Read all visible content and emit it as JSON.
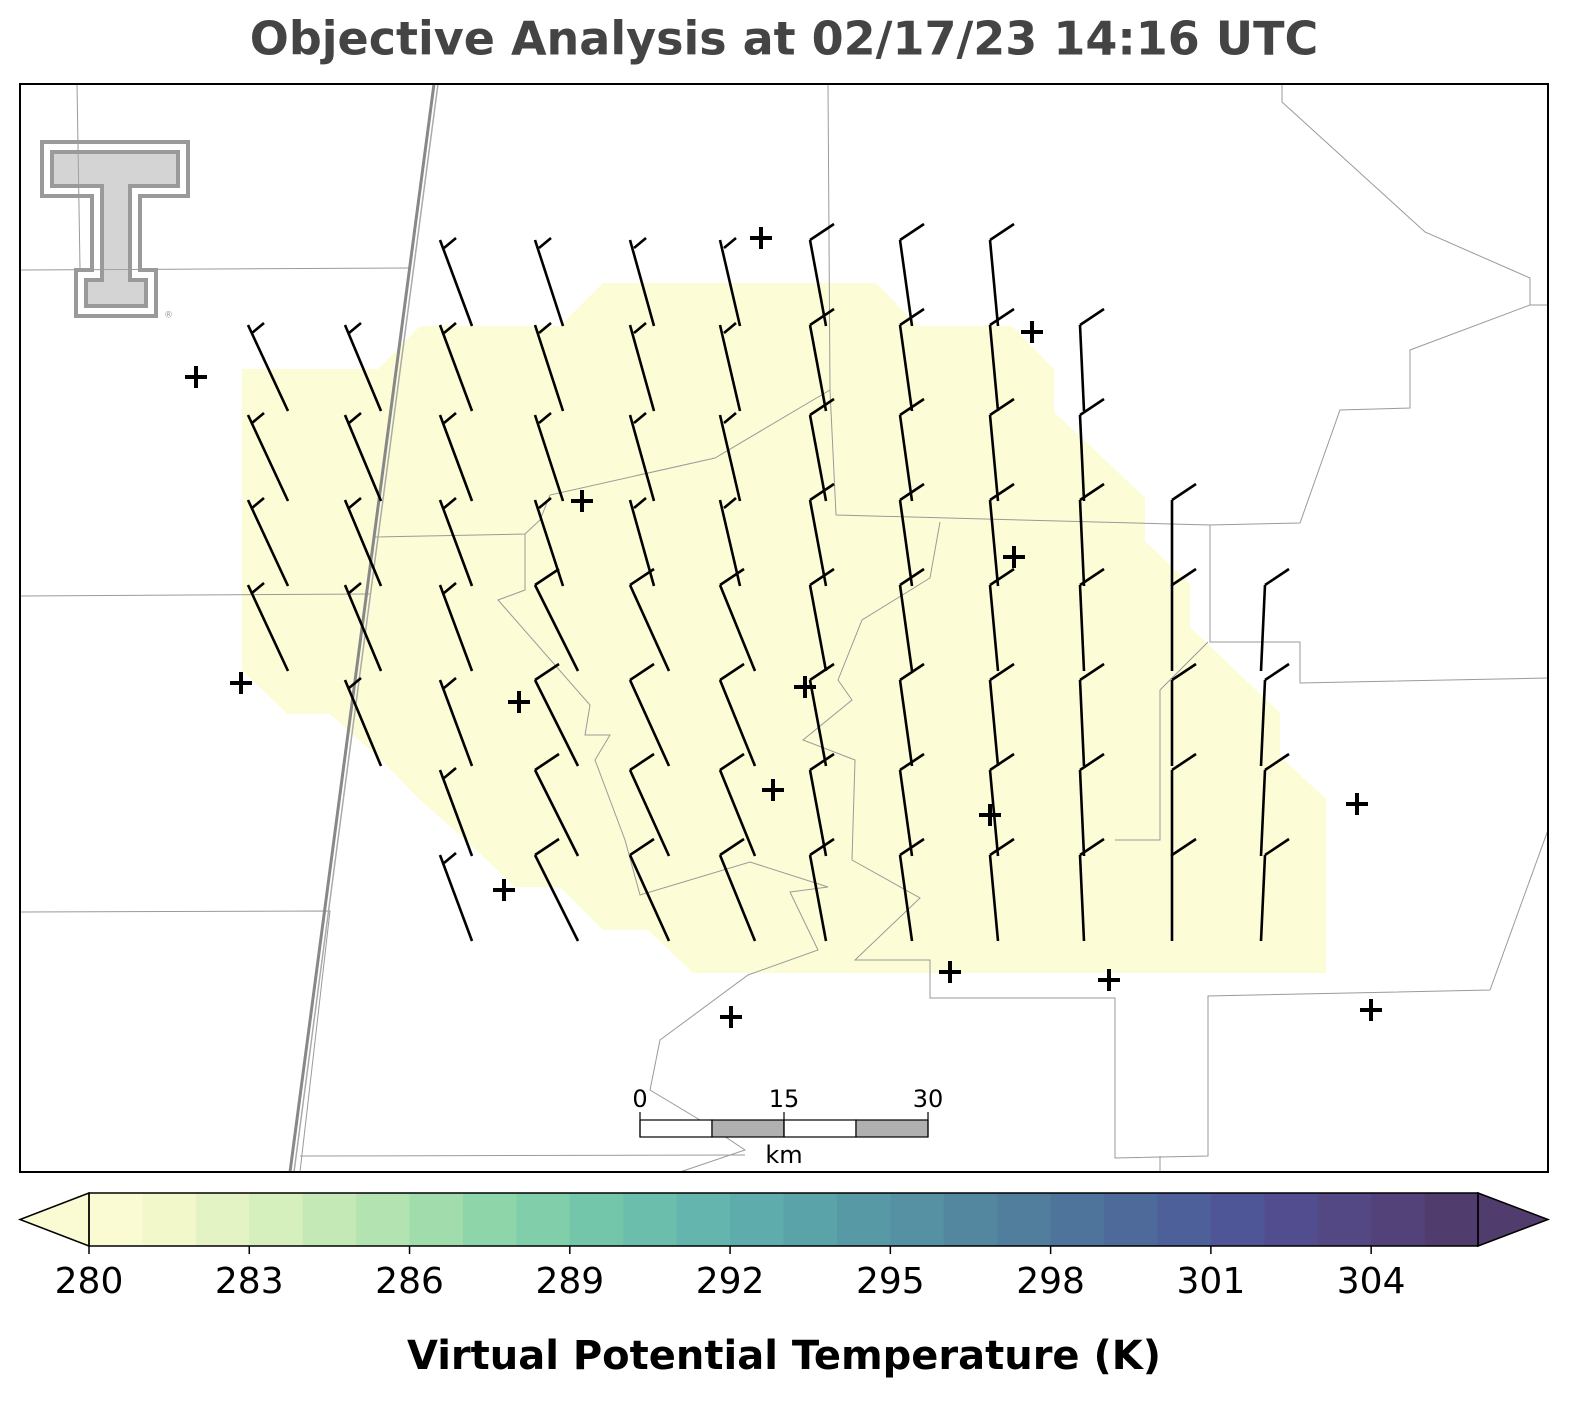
{
  "header": {
    "title": "Objective Analysis at 02/17/23 14:16 UTC"
  },
  "colorbar": {
    "label": "Virtual Potential Temperature (K)",
    "lim": [
      280,
      306
    ],
    "ticks": [
      280,
      283,
      286,
      289,
      292,
      295,
      298,
      301,
      304
    ],
    "extend": "both",
    "colors": [
      "#fbfbd3",
      "#f3f8cb",
      "#e4f3c3",
      "#d5efbd",
      "#c4e9b6",
      "#b2e3b0",
      "#a0dcac",
      "#8fd5aa",
      "#80ceaa",
      "#74c6aa",
      "#6bbeac",
      "#63b5ad",
      "#5eacab",
      "#5aa3a8",
      "#579aa6",
      "#5591a3",
      "#5387a0",
      "#517e9d",
      "#4f749b",
      "#4e6a9a",
      "#4d6099",
      "#4f5698",
      "#524d8f",
      "#534784",
      "#534279",
      "#513c6e"
    ]
  },
  "scale_bar": {
    "ticks": [
      0,
      15,
      30
    ],
    "unit": "km"
  }
}
